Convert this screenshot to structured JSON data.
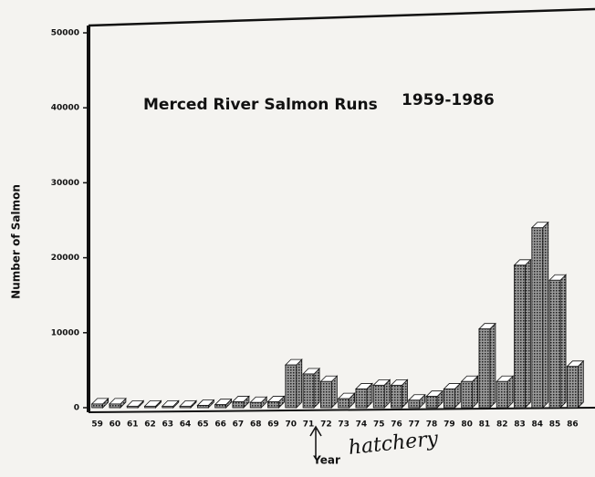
{
  "chart_data": {
    "type": "bar",
    "title": "Merced River Salmon Runs",
    "subtitle": "1959-1986",
    "x_label": "Year",
    "y_label": "Number of Salmon",
    "annotation": "hatchery",
    "categories": [
      "59",
      "60",
      "61",
      "62",
      "63",
      "64",
      "65",
      "66",
      "67",
      "68",
      "69",
      "70",
      "71",
      "72",
      "73",
      "74",
      "75",
      "76",
      "77",
      "78",
      "79",
      "80",
      "81",
      "82",
      "83",
      "84",
      "85",
      "86"
    ],
    "values": [
      500,
      500,
      200,
      200,
      200,
      200,
      300,
      400,
      800,
      700,
      800,
      5700,
      4500,
      3500,
      1200,
      2500,
      3000,
      3000,
      1000,
      1500,
      2500,
      3500,
      10500,
      3500,
      19000,
      24000,
      17000,
      5500
    ],
    "color": "#555555",
    "ylim": [
      0,
      50000
    ],
    "yticks": [
      0,
      10000,
      20000,
      30000,
      40000,
      50000
    ],
    "grid": false
  }
}
